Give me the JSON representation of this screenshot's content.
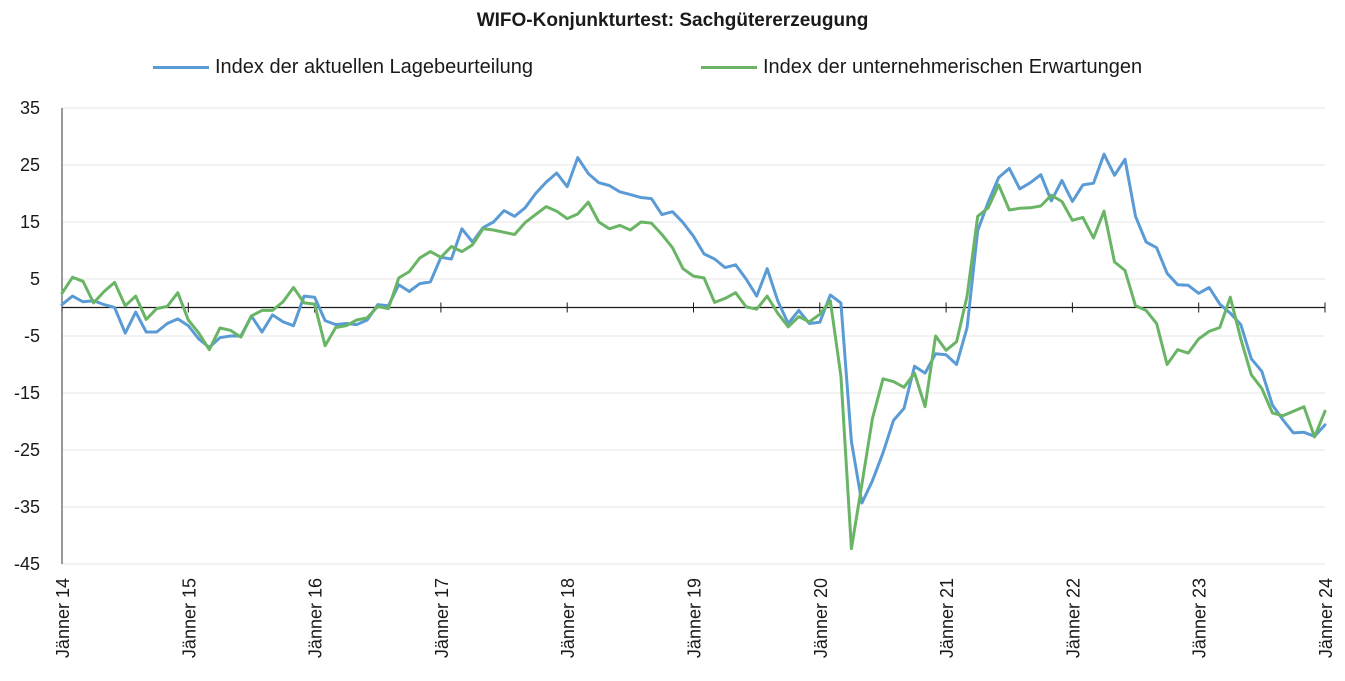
{
  "chart_data": {
    "type": "line",
    "title": "WIFO-Konjunkturtest: Sachgütererzeugung",
    "xlabel": "",
    "ylabel": "",
    "ylim": [
      -45,
      35
    ],
    "yticks": [
      35,
      25,
      15,
      5,
      -5,
      -15,
      -25,
      -35,
      -45
    ],
    "ytick_labels": [
      "35",
      "25",
      "15",
      "5",
      "-5",
      "-15",
      "-25",
      "-35",
      "-45"
    ],
    "x_range": [
      0,
      120
    ],
    "xticks": [
      0,
      12,
      24,
      36,
      48,
      60,
      72,
      84,
      96,
      108,
      120
    ],
    "xtick_labels": [
      "Jänner 14",
      "Jänner 15",
      "Jänner 16",
      "Jänner 17",
      "Jänner 18",
      "Jänner 19",
      "Jänner 20",
      "Jänner 21",
      "Jänner 22",
      "Jänner 23",
      "Jänner 24"
    ],
    "grid": true,
    "legend_position": "top",
    "series": [
      {
        "name": "Index der aktuellen Lagebeurteilung",
        "color": "#5b9bd5",
        "values": [
          0.5,
          2.0,
          1.0,
          1.2,
          0.5,
          0.0,
          -4.5,
          -0.8,
          -4.3,
          -4.3,
          -2.8,
          -2.0,
          -3.2,
          -5.5,
          -7.0,
          -5.3,
          -5.0,
          -5.0,
          -1.5,
          -4.3,
          -1.3,
          -2.5,
          -3.2,
          2.0,
          1.8,
          -2.3,
          -3.0,
          -2.8,
          -3.0,
          -2.2,
          0.5,
          0.3,
          4.0,
          2.8,
          4.2,
          4.5,
          8.8,
          8.5,
          13.8,
          11.5,
          14.0,
          15.0,
          17.0,
          16.0,
          17.5,
          20.0,
          22.0,
          23.6,
          21.2,
          26.3,
          23.5,
          21.9,
          21.4,
          20.3,
          19.8,
          19.3,
          19.1,
          16.3,
          16.8,
          14.9,
          12.5,
          9.4,
          8.5,
          7.0,
          7.5,
          5.0,
          2.0,
          6.8,
          1.2,
          -2.8,
          -0.5,
          -2.8,
          -2.6,
          2.2,
          0.8,
          -23.5,
          -34.3,
          -30.4,
          -25.5,
          -19.8,
          -17.7,
          -10.3,
          -11.5,
          -8.1,
          -8.3,
          -10.0,
          -3.5,
          13.5,
          18.5,
          22.8,
          24.4,
          20.8,
          21.9,
          23.3,
          18.7,
          22.3,
          18.6,
          21.5,
          21.8,
          26.9,
          23.2,
          26.0,
          16.0,
          11.5,
          10.5,
          6.0,
          4.0,
          3.9,
          2.5,
          3.5,
          0.6,
          -1.0,
          -3.0,
          -9.0,
          -11.2,
          -17.1,
          -19.7,
          -22.0,
          -21.9,
          -22.6,
          -20.6
        ]
      },
      {
        "name": "Index der unternehmerischen Erwartungen",
        "color": "#6ab565",
        "values": [
          2.5,
          5.3,
          4.6,
          0.8,
          2.8,
          4.4,
          0.3,
          2.0,
          -2.1,
          -0.2,
          0.2,
          2.6,
          -2.2,
          -4.5,
          -7.4,
          -3.6,
          -4.0,
          -5.2,
          -1.5,
          -0.5,
          -0.5,
          1.0,
          3.5,
          0.8,
          0.6,
          -6.7,
          -3.5,
          -3.2,
          -2.2,
          -1.8,
          0.2,
          -0.2,
          5.2,
          6.3,
          8.7,
          9.8,
          8.8,
          10.7,
          9.8,
          11.0,
          13.8,
          13.6,
          13.2,
          12.8,
          14.9,
          16.3,
          17.7,
          16.9,
          15.6,
          16.4,
          18.5,
          15.0,
          13.8,
          14.4,
          13.6,
          15.0,
          14.8,
          12.8,
          10.5,
          6.8,
          5.5,
          5.2,
          0.9,
          1.6,
          2.6,
          0.1,
          -0.3,
          2.0,
          -1.0,
          -3.4,
          -1.6,
          -2.5,
          -1.2,
          1.2,
          -12.0,
          -42.3,
          -31.0,
          -19.5,
          -12.5,
          -13.0,
          -14.0,
          -11.5,
          -17.4,
          -5.0,
          -7.5,
          -6.0,
          2.0,
          16.0,
          17.5,
          21.5,
          17.1,
          17.4,
          17.5,
          17.8,
          19.7,
          18.6,
          15.3,
          15.8,
          12.2,
          16.9,
          8.0,
          6.5,
          0.3,
          -0.5,
          -2.8,
          -10.0,
          -7.4,
          -8.0,
          -5.5,
          -4.2,
          -3.5,
          1.8,
          -5.5,
          -11.8,
          -14.2,
          -18.5,
          -19.0,
          -18.2,
          -17.4,
          -22.7,
          -18.2
        ]
      }
    ]
  }
}
